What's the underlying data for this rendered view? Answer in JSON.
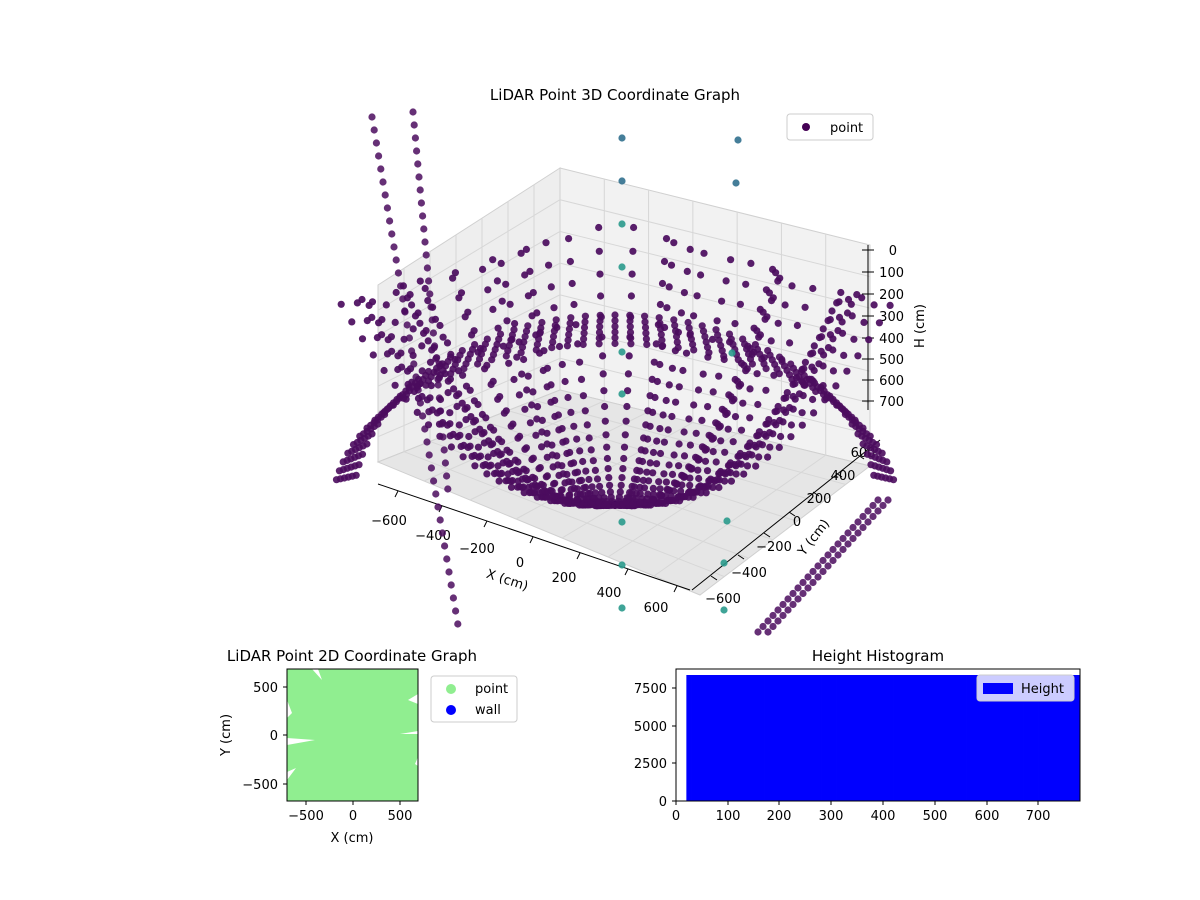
{
  "chart_data": [
    {
      "type": "scatter3d",
      "title": "LiDAR Point 3D Coordinate Graph",
      "xlabel": "X (cm)",
      "ylabel": "Y (cm)",
      "zlabel": "H (cm)",
      "x_ticks": [
        "−600",
        "−400",
        "−200",
        "0",
        "200",
        "400",
        "600"
      ],
      "y_ticks": [
        "−600",
        "−400",
        "−200",
        "0",
        "200",
        "400",
        "600"
      ],
      "z_ticks": [
        "0",
        "100",
        "200",
        "300",
        "400",
        "500",
        "600",
        "700"
      ],
      "xlim": [
        -700,
        700
      ],
      "ylim": [
        -700,
        700
      ],
      "zlim": [
        0,
        700
      ],
      "z_inverted": true,
      "legend": {
        "entries": [
          "point"
        ],
        "placement": "upper right"
      },
      "colors": {
        "point": "#440154",
        "marker_dark": "#4b0c5e",
        "marker_teal": "#2a9a8c",
        "marker_cyan": "#31708e"
      },
      "description_shape": "bowl-shaped surface of arcs: points near H 700 at the centre rising toward H 0 at the rim"
    },
    {
      "type": "scatter",
      "title": "LiDAR Point 2D Coordinate Graph",
      "xlabel": "X (cm)",
      "ylabel": "Y (cm)",
      "x_ticks": [
        "−500",
        "0",
        "500"
      ],
      "y_ticks": [
        "500",
        "0",
        "−500"
      ],
      "xlim": [
        -700,
        700
      ],
      "ylim": [
        -700,
        700
      ],
      "series": [
        {
          "name": "point",
          "color": "#90ee90"
        },
        {
          "name": "wall",
          "color": "#0000ff"
        }
      ],
      "legend": {
        "placement": "outside right"
      }
    },
    {
      "type": "bar",
      "title": "Height Histogram",
      "x_ticks": [
        "0",
        "100",
        "200",
        "300",
        "400",
        "500",
        "600",
        "700"
      ],
      "y_ticks": [
        "0",
        "2500",
        "5000",
        "7500"
      ],
      "xlim": [
        0,
        780
      ],
      "ylim": [
        0,
        8800
      ],
      "bins": {
        "start": 20,
        "end": 780,
        "count": 76
      },
      "value": 8400,
      "series": [
        {
          "name": "Height",
          "color": "#0000ff"
        }
      ],
      "legend": {
        "placement": "upper right"
      }
    }
  ]
}
